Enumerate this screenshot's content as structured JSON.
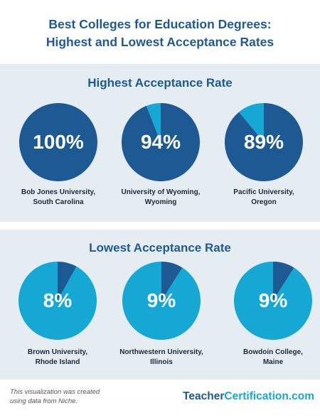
{
  "title": {
    "line1": "Best Colleges for Education Degrees:",
    "line2": "Highest and Lowest Acceptance Rates"
  },
  "colors": {
    "dark_blue": "#1d5a94",
    "light_blue": "#15a8d4",
    "panel_bg": "#e6edf2"
  },
  "chart_data": [
    {
      "type": "pie",
      "title": "Highest Acceptance Rate",
      "unit": "%",
      "items": [
        {
          "value": 100,
          "label": "100%",
          "name_line1": "Bob Jones University,",
          "name_line2": "South Carolina"
        },
        {
          "value": 94,
          "label": "94%",
          "name_line1": "University of Wyoming,",
          "name_line2": "Wyoming"
        },
        {
          "value": 89,
          "label": "89%",
          "name_line1": "Pacific University,",
          "name_line2": "Oregon"
        }
      ],
      "value_color": "#1d5a94",
      "rest_color": "#15a8d4"
    },
    {
      "type": "pie",
      "title": "Lowest Acceptance Rate",
      "unit": "%",
      "items": [
        {
          "value": 8,
          "label": "8%",
          "name_line1": "Brown University,",
          "name_line2": "Rhode Island"
        },
        {
          "value": 9,
          "label": "9%",
          "name_line1": "Northwestern University,",
          "name_line2": "Illinois"
        },
        {
          "value": 9,
          "label": "9%",
          "name_line1": "Bowdoin College,",
          "name_line2": "Maine"
        }
      ],
      "value_color": "#1d5a94",
      "rest_color": "#15a8d4"
    }
  ],
  "footer": {
    "note_line1": "This visualization was created",
    "note_line2": "using data from Niche.",
    "brand_part1": "Teacher",
    "brand_part2": "Certification.com"
  }
}
